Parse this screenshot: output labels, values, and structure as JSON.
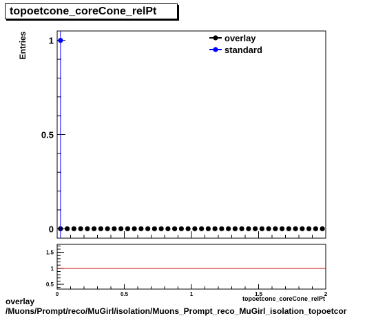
{
  "chart_data": [
    {
      "type": "scatter",
      "title": "topoetcone_coreCone_relPt",
      "ylabel": "Entries",
      "xlabel": "topoetcone_coreCone_relPt",
      "xlim": [
        0,
        2
      ],
      "ylim": [
        -0.05,
        1.05
      ],
      "yticks": [
        0,
        0.5,
        1
      ],
      "ytick_labels": [
        "0",
        "0.5",
        "1"
      ],
      "legend": {
        "position": "top-right"
      },
      "series": [
        {
          "name": "overlay",
          "color": "#000000",
          "marker": "filled-circle",
          "x": [
            0.025,
            0.075,
            0.125,
            0.175,
            0.225,
            0.275,
            0.325,
            0.375,
            0.425,
            0.475,
            0.525,
            0.575,
            0.625,
            0.675,
            0.725,
            0.775,
            0.825,
            0.875,
            0.925,
            0.975,
            1.025,
            1.075,
            1.125,
            1.175,
            1.225,
            1.275,
            1.325,
            1.375,
            1.425,
            1.475,
            1.525,
            1.575,
            1.625,
            1.675,
            1.725,
            1.775,
            1.825,
            1.875,
            1.925,
            1.975
          ],
          "values": [
            0,
            0,
            0,
            0,
            0,
            0,
            0,
            0,
            0,
            0,
            0,
            0,
            0,
            0,
            0,
            0,
            0,
            0,
            0,
            0,
            0,
            0,
            0,
            0,
            0,
            0,
            0,
            0,
            0,
            0,
            0,
            0,
            0,
            0,
            0,
            0,
            0,
            0,
            0,
            0
          ]
        },
        {
          "name": "standard",
          "color": "#0000ff",
          "marker": "filled-circle",
          "x": [
            0.025
          ],
          "values": [
            1
          ]
        }
      ],
      "grid": false
    },
    {
      "type": "line",
      "title": "",
      "xlim": [
        0,
        2
      ],
      "ylim": [
        0.35,
        1.75
      ],
      "xticks": [
        0,
        0.5,
        1,
        1.5,
        2
      ],
      "xtick_labels": [
        "0",
        "0.5",
        "1",
        "1.5",
        "2"
      ],
      "yticks": [
        0.5,
        1,
        1.5
      ],
      "ytick_labels": [
        "0.5",
        "1",
        "1.5"
      ],
      "reference_line": {
        "y": 1,
        "color": "#cc0000"
      },
      "grid": false
    }
  ],
  "footer": {
    "line1": "overlay",
    "line2": "/Muons/Prompt/reco/MuGirl/isolation/Muons_Prompt_reco_MuGirl_isolation_topoetcor"
  }
}
